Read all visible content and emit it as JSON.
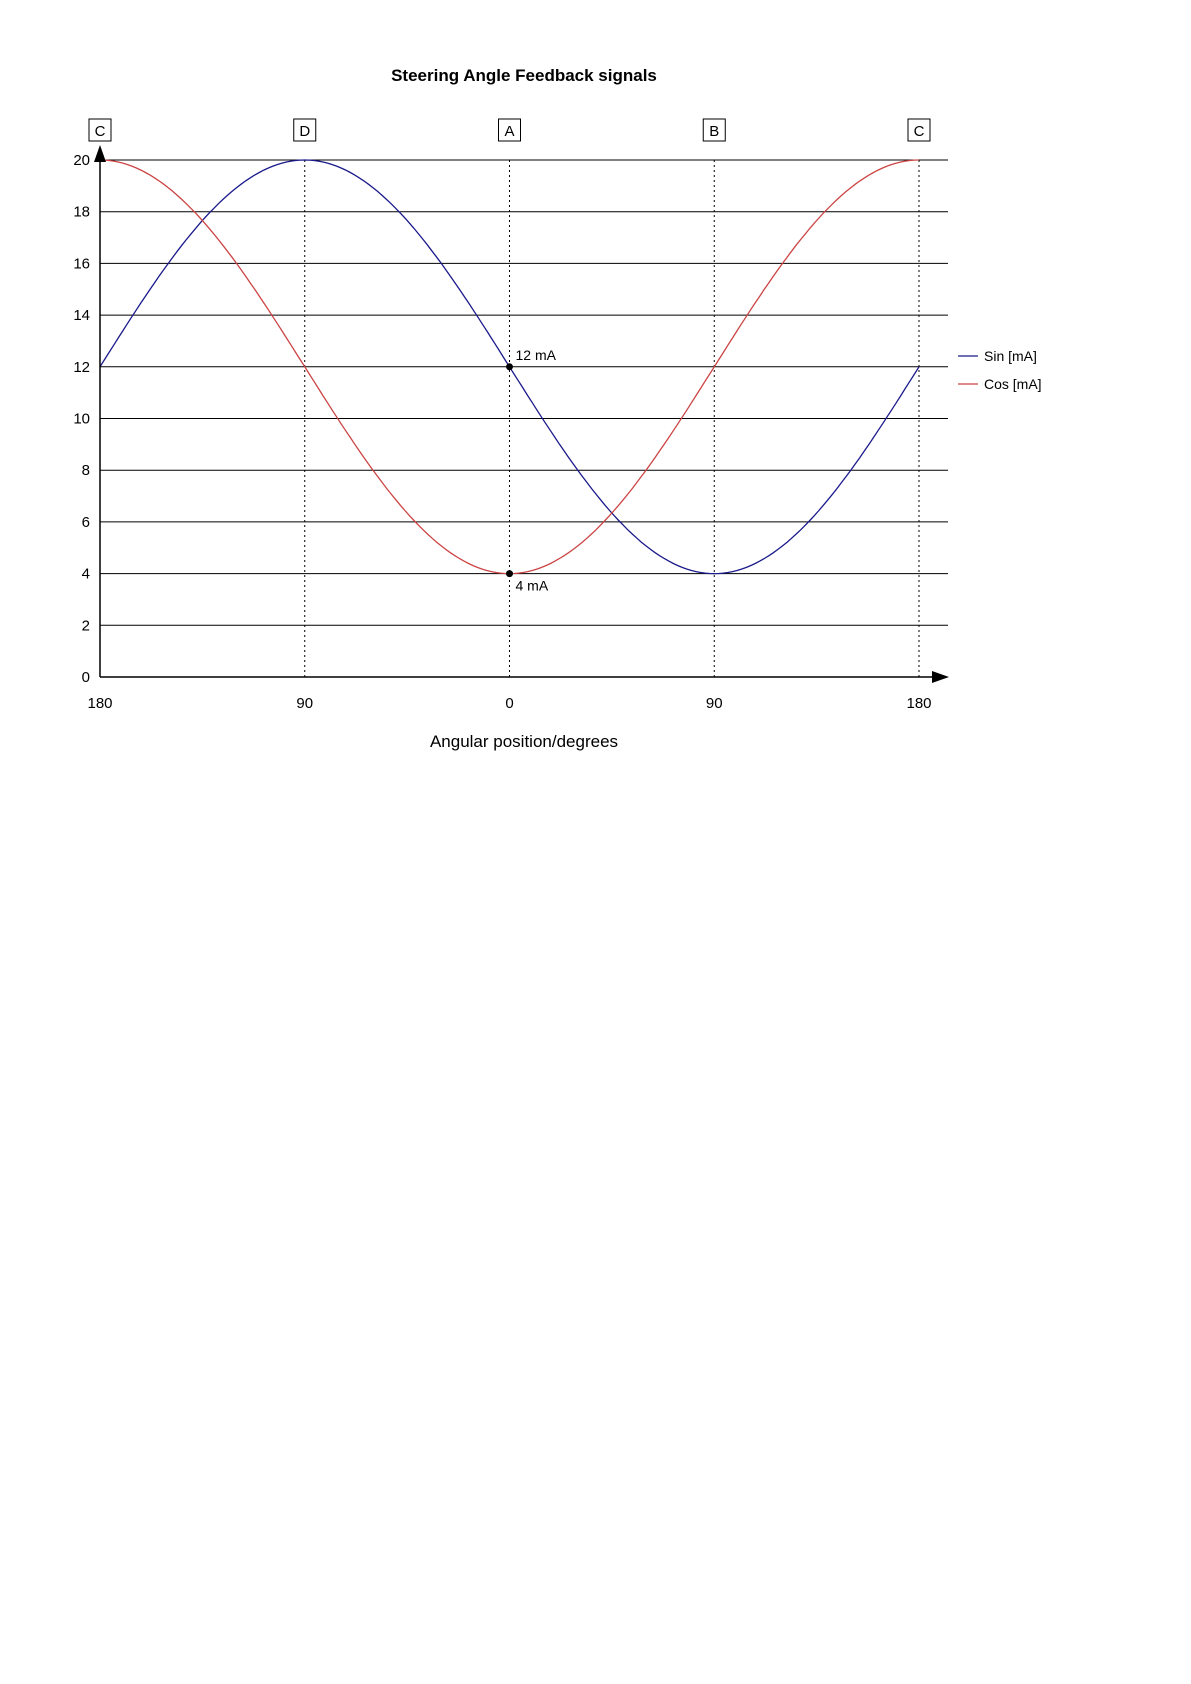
{
  "page": {
    "background": "#ffffff"
  },
  "chart_data": {
    "type": "line",
    "title": "Steering Angle Feedback signals",
    "xlabel": "Angular position/degrees",
    "ylabel": "",
    "unit": "mA",
    "xlim": [
      -180,
      180
    ],
    "ylim": [
      0,
      20
    ],
    "grid": "horizontal",
    "legend_position": "right",
    "axis_color": "#000000",
    "y_ticks": [
      0,
      2,
      4,
      6,
      8,
      10,
      12,
      14,
      16,
      18,
      20
    ],
    "x_ticks": [
      {
        "value": -180,
        "label": "180"
      },
      {
        "value": -90,
        "label": "90"
      },
      {
        "value": 0,
        "label": "0"
      },
      {
        "value": 90,
        "label": "90"
      },
      {
        "value": 180,
        "label": "180"
      }
    ],
    "section_markers": [
      {
        "x": -180,
        "label": "C"
      },
      {
        "x": -90,
        "label": "D"
      },
      {
        "x": 0,
        "label": "A"
      },
      {
        "x": 90,
        "label": "B"
      },
      {
        "x": 180,
        "label": "C"
      }
    ],
    "series": [
      {
        "name": "Sin [mA]",
        "color": "#1a1a8c",
        "model": {
          "kind": "sinusoid",
          "function": "sin",
          "offset_mA": 12,
          "amplitude_mA": -8
        },
        "samples": {
          "angle_deg": [
            -180,
            -150,
            -120,
            -90,
            -60,
            -30,
            0,
            30,
            60,
            90,
            120,
            150,
            180
          ],
          "value_mA": [
            12,
            16,
            18.93,
            20,
            18.93,
            16,
            12,
            8,
            5.07,
            4,
            5.07,
            8,
            12
          ]
        }
      },
      {
        "name": "Cos [mA]",
        "color": "#cc4444",
        "model": {
          "kind": "sinusoid",
          "function": "cos",
          "offset_mA": 12,
          "amplitude_mA": -8
        },
        "samples": {
          "angle_deg": [
            -180,
            -150,
            -120,
            -90,
            -60,
            -30,
            0,
            30,
            60,
            90,
            120,
            150,
            180
          ],
          "value_mA": [
            20,
            18.93,
            16,
            12,
            8,
            5.07,
            4,
            5.07,
            8,
            12,
            16,
            18.93,
            20
          ]
        }
      }
    ],
    "markers": [
      {
        "x": 0,
        "y": 12,
        "label": "12 mA",
        "label_position": "above-right"
      },
      {
        "x": 0,
        "y": 4,
        "label": "4 mA",
        "label_position": "below-right"
      }
    ]
  }
}
